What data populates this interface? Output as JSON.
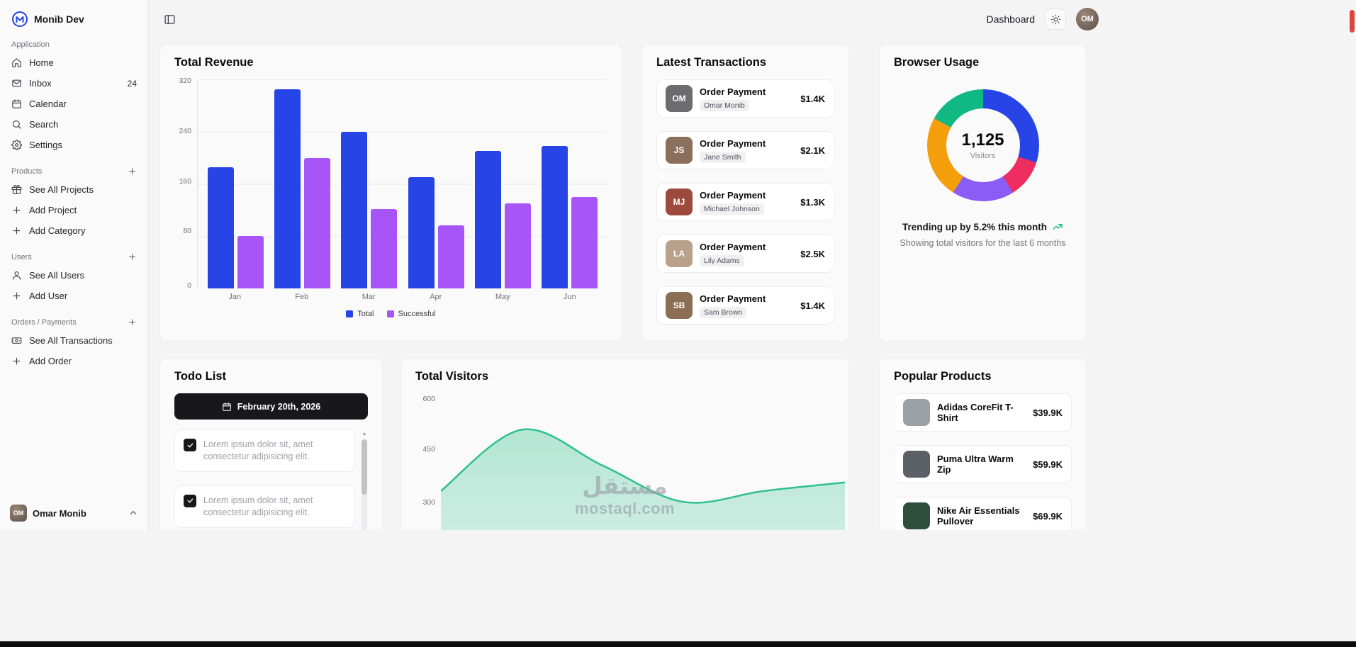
{
  "brand": {
    "name": "Monib Dev"
  },
  "header": {
    "nav": "Dashboard"
  },
  "user": {
    "name": "Omar Monib",
    "initials": "OM"
  },
  "sidebar": {
    "sections": [
      {
        "label": "Application",
        "add_button": false,
        "items": [
          {
            "icon": "home-icon",
            "label": "Home"
          },
          {
            "icon": "inbox-icon",
            "label": "Inbox",
            "badge": "24"
          },
          {
            "icon": "calendar-icon",
            "label": "Calendar"
          },
          {
            "icon": "search-icon",
            "label": "Search"
          },
          {
            "icon": "settings-icon",
            "label": "Settings"
          }
        ]
      },
      {
        "label": "Products",
        "add_button": true,
        "items": [
          {
            "icon": "projects-icon",
            "label": "See All Projects"
          },
          {
            "icon": "plus-icon",
            "label": "Add Project"
          },
          {
            "icon": "plus-icon",
            "label": "Add Category"
          }
        ]
      },
      {
        "label": "Users",
        "add_button": true,
        "items": [
          {
            "icon": "user-icon",
            "label": "See All Users"
          },
          {
            "icon": "plus-icon",
            "label": "Add User"
          }
        ]
      },
      {
        "label": "Orders / Payments",
        "add_button": true,
        "items": [
          {
            "icon": "transactions-icon",
            "label": "See All Transactions"
          },
          {
            "icon": "plus-icon",
            "label": "Add Order"
          }
        ]
      }
    ]
  },
  "revenue": {
    "title": "Total Revenue",
    "legend": [
      {
        "label": "Total",
        "color": "#2744e6"
      },
      {
        "label": "Successful",
        "color": "#a855f7"
      }
    ]
  },
  "transactions": {
    "title": "Latest Transactions",
    "rows": [
      {
        "title": "Order Payment",
        "name": "Omar Monib",
        "amount": "$1.4K",
        "initials": "OM",
        "avatar_color": "#6b6b70"
      },
      {
        "title": "Order Payment",
        "name": "Jane Smith",
        "amount": "$2.1K",
        "initials": "JS",
        "avatar_color": "#8a6f5d"
      },
      {
        "title": "Order Payment",
        "name": "Michael Johnson",
        "amount": "$1.3K",
        "initials": "MJ",
        "avatar_color": "#9c4a3c"
      },
      {
        "title": "Order Payment",
        "name": "Lily Adams",
        "amount": "$2.5K",
        "initials": "LA",
        "avatar_color": "#b9a08b"
      },
      {
        "title": "Order Payment",
        "name": "Sam Brown",
        "amount": "$1.4K",
        "initials": "SB",
        "avatar_color": "#8c6e54"
      }
    ]
  },
  "browser": {
    "title": "Browser Usage",
    "trend_text": "Trending up by 5.2% this month",
    "trend_icon": "trending-up-icon",
    "subtext": "Showing total visitors for the last 6 months"
  },
  "todo": {
    "title": "Todo List",
    "date_button": {
      "icon": "calendar-icon",
      "label": "February 20th, 2026"
    },
    "items": [
      {
        "checked": true,
        "text": "Lorem ipsum dolor sit, amet consectetur adipisicing elit."
      },
      {
        "checked": true,
        "text": "Lorem ipsum dolor sit, amet consectetur adipisicing elit."
      }
    ]
  },
  "visitors": {
    "title": "Total Visitors",
    "watermark_line1": "مستقل",
    "watermark_line2": "mostaql.com"
  },
  "products": {
    "title": "Popular Products",
    "rows": [
      {
        "name": "Adidas CoreFit T-Shirt",
        "price": "$39.9K",
        "image_color": "#9aa0a6"
      },
      {
        "name": "Puma Ultra Warm Zip",
        "price": "$59.9K",
        "image_color": "#5b5f66"
      },
      {
        "name": "Nike Air Essentials Pullover",
        "price": "$69.9K",
        "image_color": "#2f4f3e"
      }
    ]
  },
  "chart_data": [
    {
      "id": "total-revenue",
      "type": "bar",
      "title": "Total Revenue",
      "categories": [
        "Jan",
        "Feb",
        "Mar",
        "Apr",
        "May",
        "Jun"
      ],
      "series": [
        {
          "name": "Total",
          "color": "#2744e6",
          "values": [
            185,
            305,
            240,
            170,
            210,
            218
          ]
        },
        {
          "name": "Successful",
          "color": "#a855f7",
          "values": [
            80,
            200,
            122,
            96,
            130,
            140
          ]
        }
      ],
      "ylim": [
        0,
        320
      ],
      "yticks": [
        0,
        80,
        160,
        240,
        320
      ],
      "grid": true,
      "legend_position": "bottom"
    },
    {
      "id": "browser-usage",
      "type": "pie",
      "title": "Browser Usage",
      "total_label": "1,125",
      "total_sublabel": "Visitors",
      "segments": [
        {
          "color": "#2744e6",
          "value": 30
        },
        {
          "color": "#ee2d60",
          "value": 11
        },
        {
          "color": "#8b5cf6",
          "value": 18
        },
        {
          "color": "#f59e0b",
          "value": 24
        },
        {
          "color": "#10b981",
          "value": 17
        }
      ]
    },
    {
      "id": "total-visitors",
      "type": "area",
      "title": "Total Visitors",
      "values": [
        330,
        510,
        405,
        298,
        330,
        355
      ],
      "visible_yticks": [
        600,
        450,
        300
      ],
      "ylim_visible": [
        300,
        600
      ],
      "line_color": "#2fc08d"
    }
  ]
}
